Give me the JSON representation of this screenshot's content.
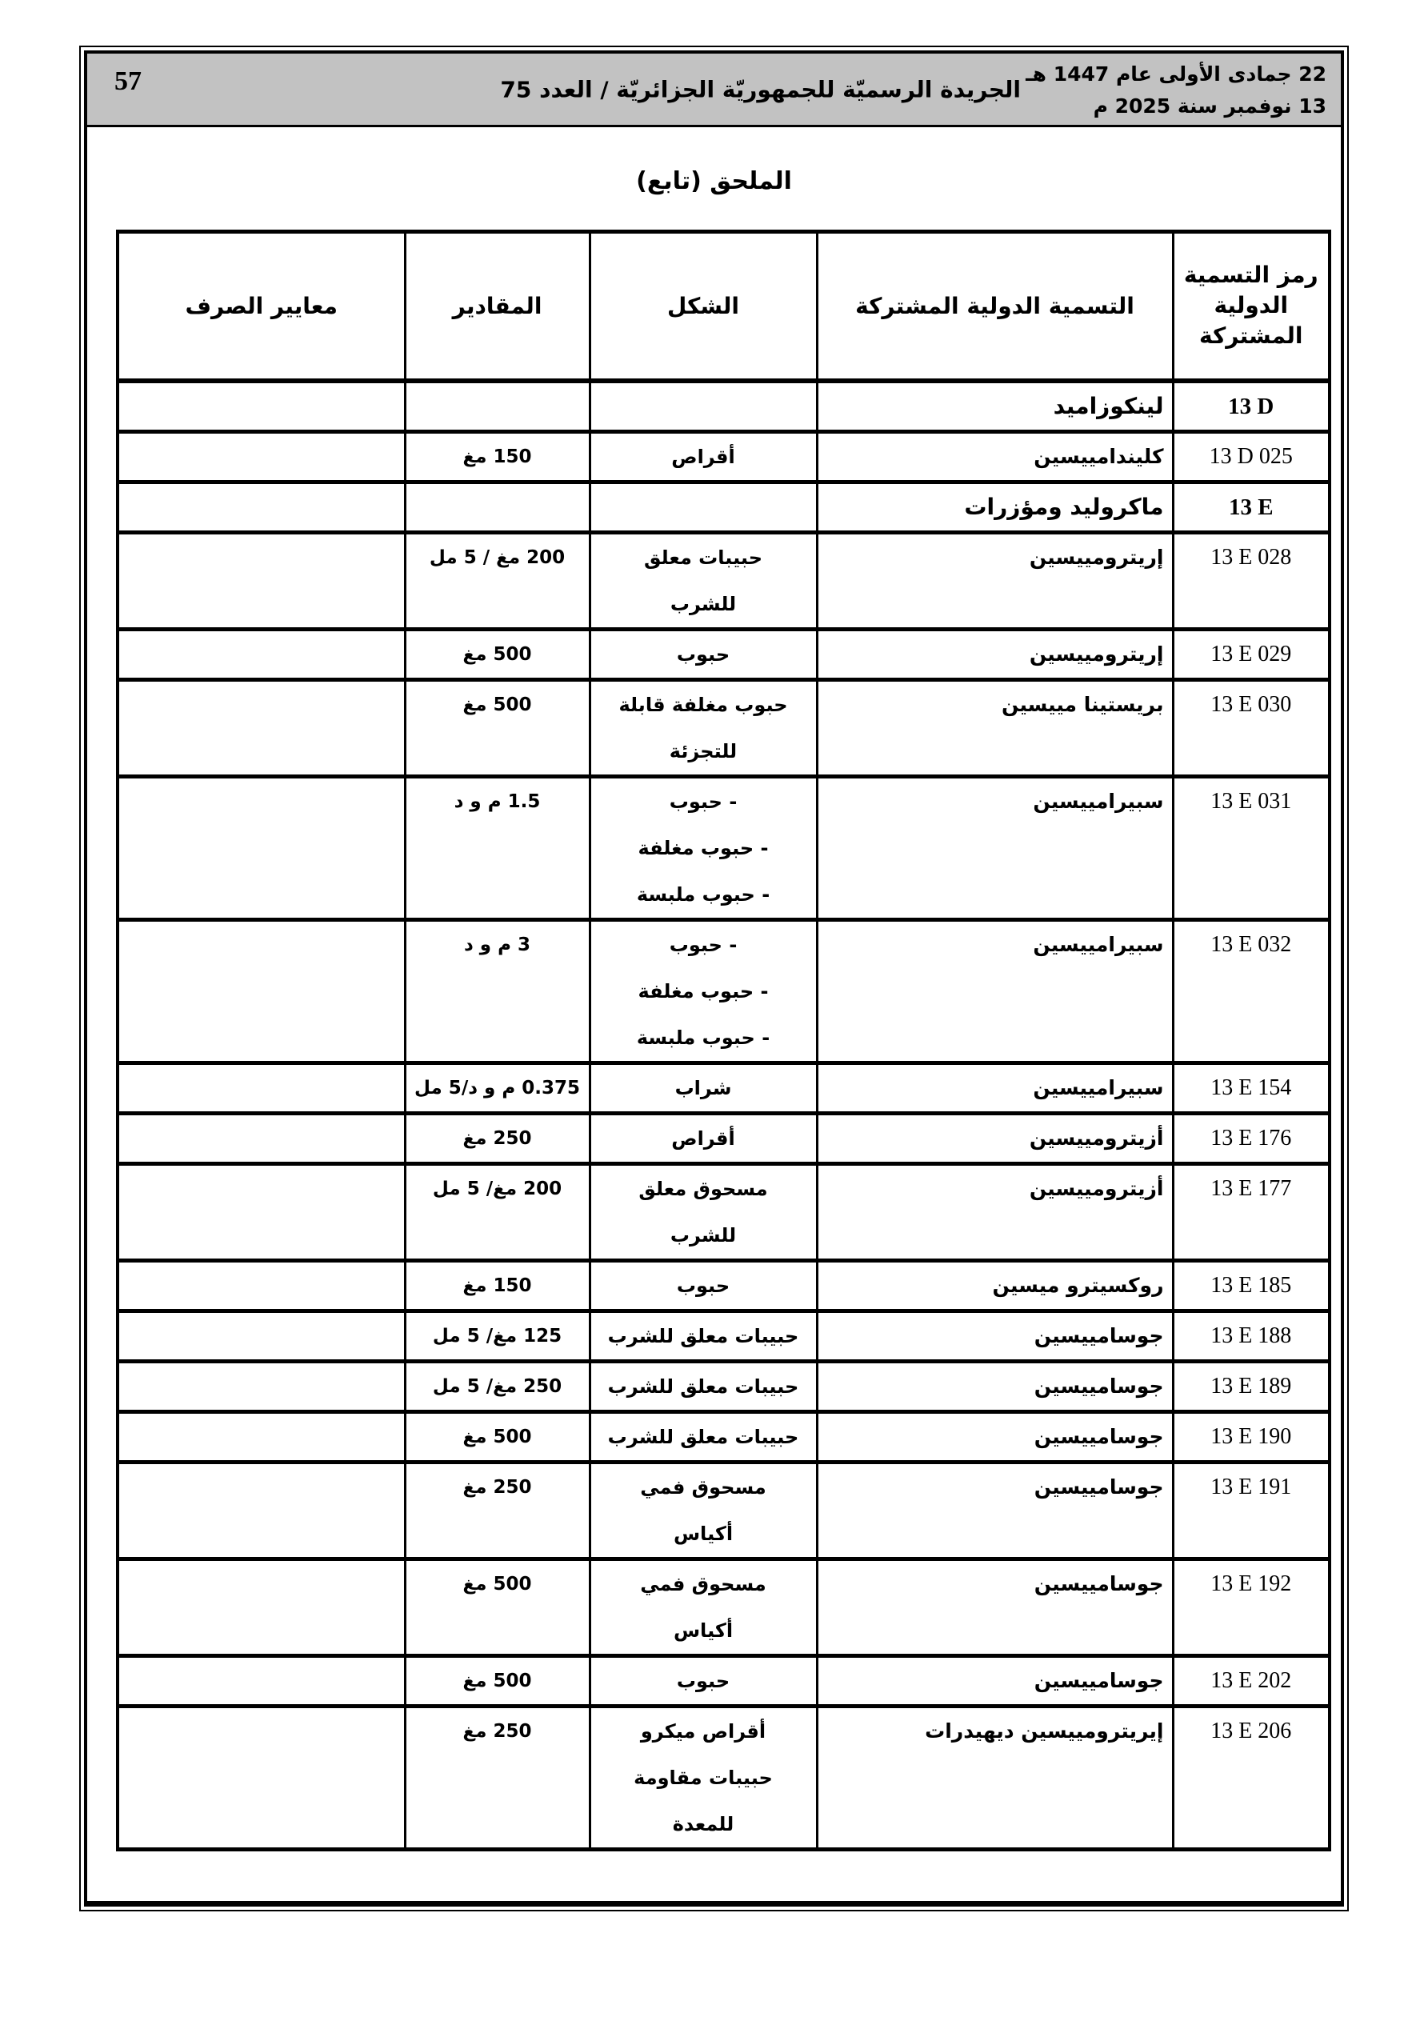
{
  "colors": {
    "band_gray": "#c2c2c2",
    "ink": "#000000",
    "paper": "#ffffff"
  },
  "header_band": {
    "page_number": "57",
    "journal_title": "الجريدة الرسميّة للجمهوريّة الجزائريّة / العدد 75",
    "date_hijri": "22 جمادى الأولى عام 1447 هـ",
    "date_gregorian": "13 نوفمبر سنة 2025 م"
  },
  "annex": {
    "title_main": "الملحق",
    "title_suffix": "(تابع)"
  },
  "table": {
    "column_headers": {
      "code_lines": [
        "رمز التسمية",
        "الدولية",
        "المشتركة"
      ],
      "inn": "التسمية الدولية المشتركة",
      "form": "الشكل",
      "doses": "المقادير",
      "criteria": "معايير الصرف"
    },
    "rows": [
      {
        "code": "13 D",
        "name": "لينكوزاميد",
        "form_lines": [],
        "dose": "",
        "section": true
      },
      {
        "code": "13 D 025",
        "name": "كليندامييسين",
        "form_lines": [
          "أقراص"
        ],
        "dose": "150 مغ",
        "section": false
      },
      {
        "code": "13 E",
        "name": "ماكروليد ومؤزرات",
        "form_lines": [],
        "dose": "",
        "section": true
      },
      {
        "code": "13 E 028",
        "name": "إريترومييسين",
        "form_lines": [
          "حبيبات معلق",
          "للشرب"
        ],
        "dose": "200 مغ / 5 مل",
        "section": false
      },
      {
        "code": "13 E 029",
        "name": "إريترومييسين",
        "form_lines": [
          "حبوب"
        ],
        "dose": "500 مغ",
        "section": false
      },
      {
        "code": "13 E 030",
        "name": "بريستينا مييسين",
        "form_lines": [
          "حبوب مغلفة قابلة",
          "للتجزئة"
        ],
        "dose": "500 مغ",
        "section": false
      },
      {
        "code": "13 E 031",
        "name": "سبيرامييسين",
        "form_lines": [
          "- حبوب",
          "- حبوب مغلفة",
          "- حبوب ملبسة"
        ],
        "dose": "1.5 م و د",
        "section": false
      },
      {
        "code": "13 E 032",
        "name": "سبيرامييسين",
        "form_lines": [
          "- حبوب",
          "- حبوب مغلفة",
          "- حبوب ملبسة"
        ],
        "dose": "3 م و د",
        "section": false
      },
      {
        "code": "13 E 154",
        "name": "سبيرامييسين",
        "form_lines": [
          "شراب"
        ],
        "dose": "0.375 م و د/5 مل",
        "section": false
      },
      {
        "code": "13 E 176",
        "name": "أزيترومييسين",
        "form_lines": [
          "أقراص"
        ],
        "dose": "250 مغ",
        "section": false
      },
      {
        "code": "13 E 177",
        "name": "أزيترومييسين",
        "form_lines": [
          "مسحوق معلق",
          "للشرب"
        ],
        "dose": "200 مغ/ 5 مل",
        "section": false
      },
      {
        "code": "13 E 185",
        "name": "روكسيترو ميسين",
        "form_lines": [
          "حبوب"
        ],
        "dose": "150 مغ",
        "section": false
      },
      {
        "code": "13 E 188",
        "name": "جوسامييسين",
        "form_lines": [
          "حبيبات معلق للشرب"
        ],
        "dose": "125 مغ/ 5 مل",
        "section": false
      },
      {
        "code": "13 E 189",
        "name": "جوسامييسين",
        "form_lines": [
          "حبيبات معلق للشرب"
        ],
        "dose": "250 مغ/ 5 مل",
        "section": false
      },
      {
        "code": "13 E 190",
        "name": "جوسامييسين",
        "form_lines": [
          "حبيبات معلق للشرب"
        ],
        "dose": "500 مغ",
        "section": false
      },
      {
        "code": "13 E 191",
        "name": "جوسامييسين",
        "form_lines": [
          "مسحوق فمي",
          "أكياس"
        ],
        "dose": "250 مغ",
        "section": false
      },
      {
        "code": "13 E 192",
        "name": "جوسامييسين",
        "form_lines": [
          "مسحوق فمي",
          "أكياس"
        ],
        "dose": "500 مغ",
        "section": false
      },
      {
        "code": "13 E 202",
        "name": "جوسامييسين",
        "form_lines": [
          "حبوب"
        ],
        "dose": "500 مغ",
        "section": false
      },
      {
        "code": "13 E 206",
        "name": "إيريترومييسين ديهيدرات",
        "form_lines": [
          "أقراص ميكرو",
          "حبيبات مقاومة",
          "للمعدة"
        ],
        "dose": "250 مغ",
        "section": false
      }
    ]
  }
}
